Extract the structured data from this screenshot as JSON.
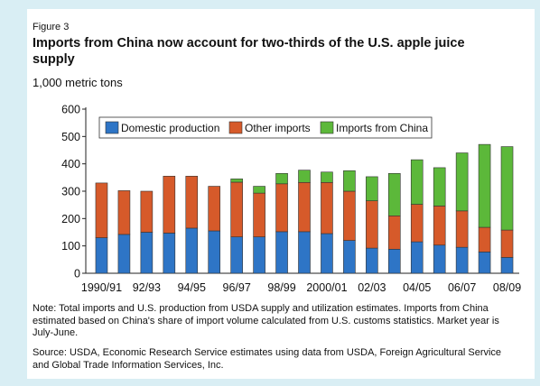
{
  "figure_label": "Figure 3",
  "title": "Imports from China now account for two-thirds of the U.S. apple juice supply",
  "units_label": "1,000 metric tons",
  "note": "Note: Total imports and U.S. production from USDA supply and utilization estimates. Imports from China estimated based on China's share of import volume calculated from U.S. customs statistics. Market year is July-June.",
  "source": "Source: USDA, Economic Research Service estimates using data from USDA, Foreign Agricultural Service and Global Trade Information Services, Inc.",
  "chart_data": {
    "type": "bar",
    "stacked": true,
    "categories": [
      "1990/91",
      "1991/92",
      "92/93",
      "1993/94",
      "94/95",
      "1995/96",
      "96/97",
      "1997/98",
      "98/99",
      "1999/2000",
      "2000/01",
      "2001/02",
      "02/03",
      "2003/04",
      "04/05",
      "2005/06",
      "06/07",
      "2007/08",
      "08/09"
    ],
    "x_tick_labels": [
      "1990/91",
      "",
      "92/93",
      "",
      "94/95",
      "",
      "96/97",
      "",
      "98/99",
      "",
      "2000/01",
      "",
      "02/03",
      "",
      "04/05",
      "",
      "06/07",
      "",
      "08/09"
    ],
    "series": [
      {
        "name": "Domestic production",
        "color": "#2e75c6",
        "values": [
          130,
          142,
          150,
          147,
          165,
          155,
          133,
          133,
          152,
          152,
          145,
          120,
          92,
          88,
          115,
          103,
          95,
          78,
          58
        ]
      },
      {
        "name": "Other imports",
        "color": "#d65a2a",
        "values": [
          200,
          160,
          150,
          208,
          190,
          163,
          200,
          160,
          175,
          180,
          187,
          180,
          173,
          122,
          137,
          143,
          133,
          90,
          100
        ]
      },
      {
        "name": "Imports from China",
        "color": "#5cb83a",
        "values": [
          0,
          0,
          0,
          0,
          0,
          0,
          12,
          25,
          38,
          45,
          38,
          75,
          88,
          155,
          163,
          140,
          212,
          303,
          305
        ]
      }
    ],
    "y_ticks": [
      0,
      100,
      200,
      300,
      400,
      500,
      600
    ],
    "ylim": [
      0,
      600
    ],
    "ylabel": "1,000 metric tons",
    "legend_position": "top",
    "grid": false
  }
}
